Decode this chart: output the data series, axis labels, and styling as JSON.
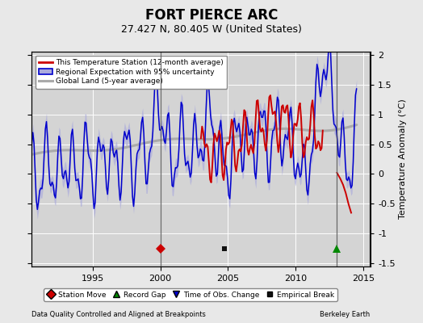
{
  "title": "FORT PIERCE ARC",
  "subtitle": "27.427 N, 80.405 W (United States)",
  "ylabel": "Temperature Anomaly (°C)",
  "xlabel_left": "Data Quality Controlled and Aligned at Breakpoints",
  "xlabel_right": "Berkeley Earth",
  "ylim": [
    -1.55,
    2.05
  ],
  "xlim": [
    1990.5,
    2015.5
  ],
  "yticks": [
    -1.5,
    -1.0,
    -0.5,
    0.0,
    0.5,
    1.0,
    1.5,
    2.0
  ],
  "xticks": [
    1995,
    2000,
    2005,
    2010,
    2015
  ],
  "background_color": "#e8e8e8",
  "plot_bg_color": "#d4d4d4",
  "grid_color": "#ffffff",
  "vertical_lines": [
    2000.0,
    2013.0
  ],
  "vertical_line_color": "#555555",
  "station_moves": [
    2000.0
  ],
  "record_gaps": [
    2013.0
  ],
  "empirical_breaks": [
    2004.75
  ],
  "legend_entries": [
    "This Temperature Station (12-month average)",
    "Regional Expectation with 95% uncertainty",
    "Global Land (5-year average)"
  ],
  "blue_line_color": "#0000cc",
  "blue_fill_color": "#aaaadd",
  "red_line_color": "#cc0000",
  "gray_line_color": "#aaaaaa",
  "title_fontsize": 12,
  "subtitle_fontsize": 9,
  "axis_fontsize": 8,
  "tick_fontsize": 8
}
